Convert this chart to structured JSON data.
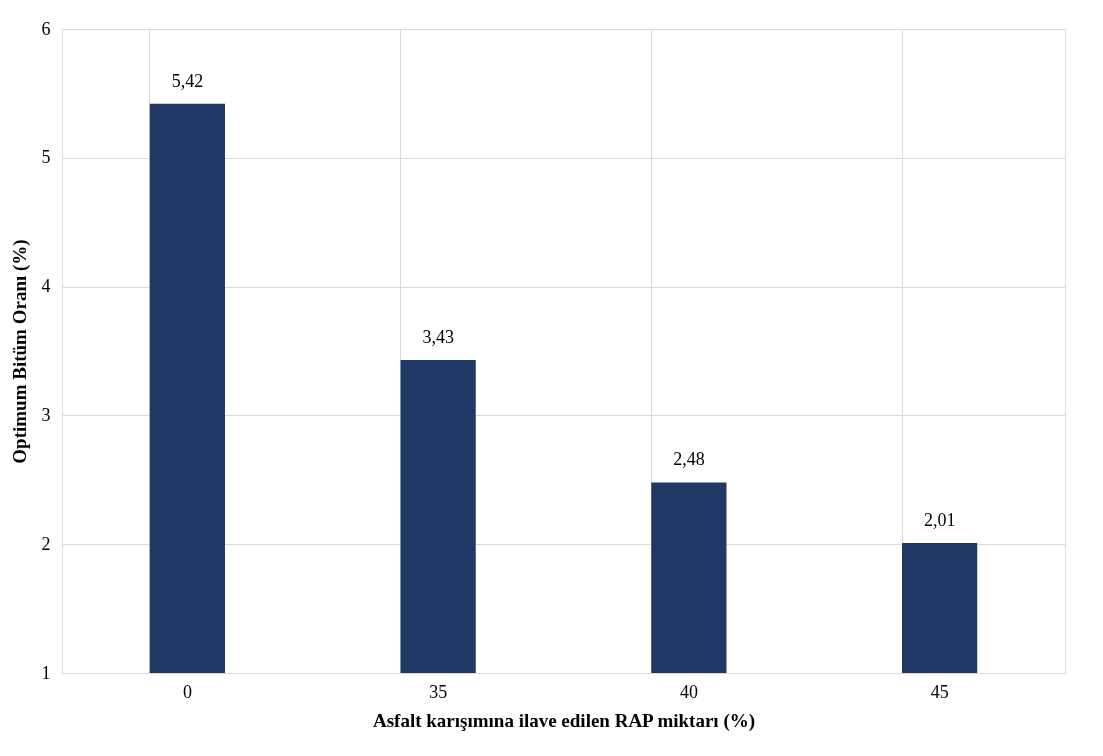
{
  "chart_data": {
    "type": "bar",
    "xlabel": "Asfalt karışımına ilave edilen RAP miktarı (%)",
    "ylabel": "Optimum Bitüm Oranı (%)",
    "categories": [
      "0",
      "35",
      "40",
      "45"
    ],
    "values": [
      5.42,
      3.43,
      2.48,
      2.01
    ],
    "value_labels": [
      "5,42",
      "3,43",
      "2,48",
      "2,01"
    ],
    "color": "#1f3864",
    "ylim": [
      1,
      6
    ],
    "yticks": [
      1,
      2,
      3,
      4,
      5,
      6
    ],
    "grid": true
  }
}
